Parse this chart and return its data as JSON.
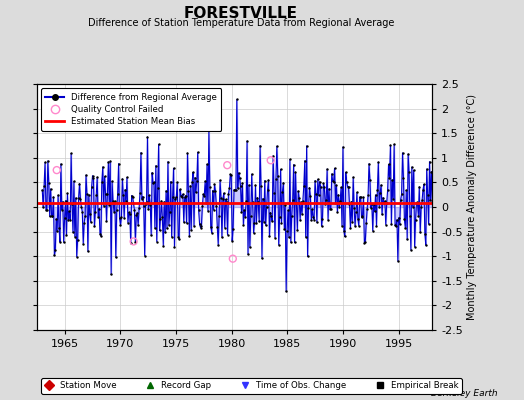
{
  "title": "FORESTVILLE",
  "subtitle": "Difference of Station Temperature Data from Regional Average",
  "ylabel_right": "Monthly Temperature Anomaly Difference (°C)",
  "xlim": [
    1962.5,
    1998.0
  ],
  "ylim": [
    -2.5,
    2.5
  ],
  "yticks": [
    -2.5,
    -2,
    -1.5,
    -1,
    -0.5,
    0,
    0.5,
    1,
    1.5,
    2,
    2.5
  ],
  "xticks": [
    1965,
    1970,
    1975,
    1980,
    1985,
    1990,
    1995
  ],
  "mean_bias": 0.08,
  "background_color": "#dcdcdc",
  "plot_bg_color": "#ffffff",
  "line_color": "#0000cc",
  "fill_color": "#9999ff",
  "bias_line_color": "#ff0000",
  "berkeley_earth_text": "Berkeley Earth",
  "seed": 42,
  "n_points": 420,
  "start_year": 1963.0,
  "end_year": 1998.0,
  "qc_failed_x": [
    1964.3,
    1971.2,
    1979.6,
    1980.1,
    1983.5
  ],
  "qc_failed_y": [
    0.75,
    -0.7,
    0.85,
    -1.05,
    0.95
  ],
  "obs_change_color": "#3333ff",
  "title_fontsize": 11,
  "subtitle_fontsize": 7,
  "tick_fontsize": 8,
  "ylabel_fontsize": 7
}
